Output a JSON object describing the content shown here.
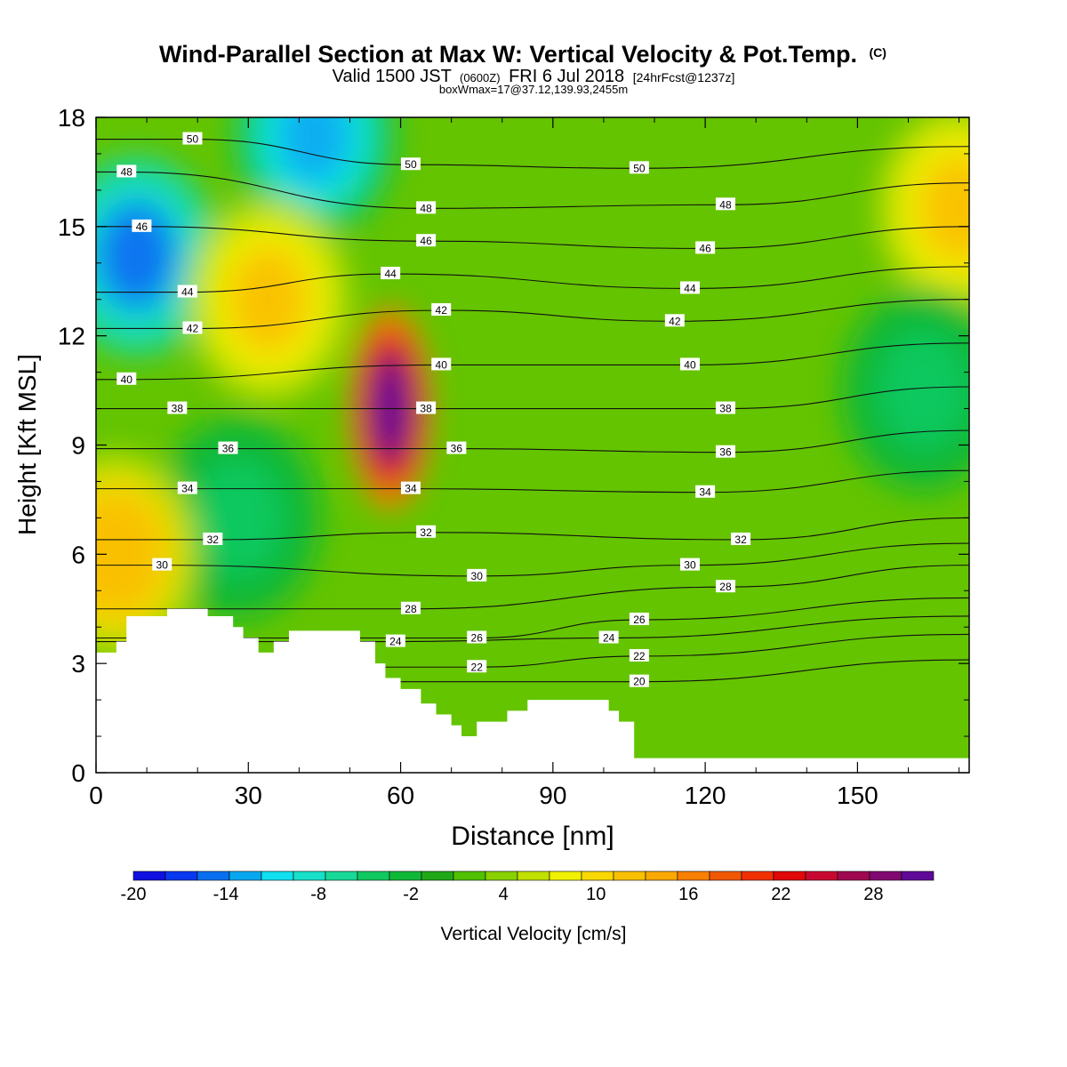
{
  "title": {
    "main": "Wind-Parallel Section at Max W: Vertical Velocity & Pot.Temp.",
    "copyright": "(C)",
    "valid_prefix": "Valid 1500 JST",
    "valid_utc": "(0600Z)",
    "valid_date": "FRI 6 Jul 2018",
    "forecast": "[24hrFcst@1237z]",
    "box_info": "boxWmax=17@37.12,139.93,2455m"
  },
  "chart_data": {
    "type": "heatmap",
    "xlabel": "Distance [nm]",
    "ylabel": "Height [Kft MSL]",
    "xlim": [
      0,
      172
    ],
    "ylim": [
      0,
      18
    ],
    "x_ticks": [
      0,
      30,
      60,
      90,
      120,
      150
    ],
    "y_ticks": [
      0,
      3,
      6,
      9,
      12,
      15,
      18
    ],
    "colorbar": {
      "label": "Vertical Velocity [cm/s]",
      "tick_labels": [
        "-20",
        "-14",
        "-8",
        "-2",
        "4",
        "10",
        "16",
        "22",
        "28"
      ],
      "colors": [
        "#1010e0",
        "#0838f0",
        "#0870f0",
        "#08a8f0",
        "#10e0f0",
        "#18e0c8",
        "#18d898",
        "#10c860",
        "#10b838",
        "#20a818",
        "#50c000",
        "#88d000",
        "#c0e000",
        "#f0f000",
        "#f8d800",
        "#f8c000",
        "#f8a800",
        "#f88000",
        "#f05800",
        "#f03000",
        "#e00808",
        "#c80830",
        "#a00850",
        "#800870",
        "#600898"
      ]
    },
    "terrain_profile": {
      "x": [
        0,
        4,
        4,
        6,
        6,
        10,
        10,
        14,
        14,
        22,
        22,
        27,
        27,
        29,
        29,
        32,
        32,
        35,
        35,
        38,
        38,
        42,
        42,
        52,
        52,
        55,
        55,
        57,
        57,
        60,
        60,
        64,
        64,
        67,
        67,
        70,
        70,
        72,
        72,
        75,
        75,
        81,
        81,
        85,
        85,
        101,
        101,
        103,
        103,
        106,
        106,
        172
      ],
      "height_kft": [
        3.3,
        3.3,
        3.6,
        3.6,
        4.3,
        4.3,
        4.3,
        4.3,
        4.5,
        4.5,
        4.3,
        4.3,
        4.0,
        4.0,
        3.7,
        3.7,
        3.3,
        3.3,
        3.6,
        3.6,
        3.9,
        3.9,
        3.9,
        3.9,
        3.6,
        3.6,
        3.0,
        3.0,
        2.6,
        2.6,
        2.3,
        2.3,
        1.9,
        1.9,
        1.6,
        1.6,
        1.3,
        1.3,
        1.0,
        1.0,
        1.4,
        1.4,
        1.7,
        1.7,
        2.0,
        2.0,
        1.7,
        1.7,
        1.4,
        1.4,
        0.4,
        0.4
      ]
    },
    "vertical_velocity_features": [
      {
        "name": "downdraft-west-upper",
        "x": 8,
        "height_kft": 14.2,
        "value": -16
      },
      {
        "name": "downdraft-top-center",
        "x": 43,
        "height_kft": 17.5,
        "value": -14
      },
      {
        "name": "downdraft-west-mid",
        "x": 28,
        "height_kft": 7.0,
        "value": -7
      },
      {
        "name": "updraft-core",
        "x": 58,
        "height_kft": 10.0,
        "value": 30
      },
      {
        "name": "updraft-west-ridge",
        "x": 34,
        "height_kft": 13.0,
        "value": 10
      },
      {
        "name": "updraft-west-low",
        "x": 4,
        "height_kft": 6.0,
        "value": 11
      },
      {
        "name": "updraft-east-edge",
        "x": 170,
        "height_kft": 15.5,
        "value": 10
      },
      {
        "name": "downdraft-east-edge",
        "x": 163,
        "height_kft": 10.5,
        "value": -7
      }
    ],
    "potential_temperature_labels": [
      {
        "label": "50",
        "x": 19,
        "height_kft": 17.4
      },
      {
        "label": "50",
        "x": 62,
        "height_kft": 16.7
      },
      {
        "label": "50",
        "x": 107,
        "height_kft": 16.6
      },
      {
        "label": "48",
        "x": 6,
        "height_kft": 16.5
      },
      {
        "label": "48",
        "x": 65,
        "height_kft": 15.5
      },
      {
        "label": "48",
        "x": 124,
        "height_kft": 15.6
      },
      {
        "label": "46",
        "x": 9,
        "height_kft": 15.0
      },
      {
        "label": "46",
        "x": 65,
        "height_kft": 14.6
      },
      {
        "label": "46",
        "x": 120,
        "height_kft": 14.4
      },
      {
        "label": "44",
        "x": 18,
        "height_kft": 13.2
      },
      {
        "label": "44",
        "x": 58,
        "height_kft": 13.7
      },
      {
        "label": "44",
        "x": 117,
        "height_kft": 13.3
      },
      {
        "label": "42",
        "x": 19,
        "height_kft": 12.2
      },
      {
        "label": "42",
        "x": 68,
        "height_kft": 12.7
      },
      {
        "label": "42",
        "x": 114,
        "height_kft": 12.4
      },
      {
        "label": "40",
        "x": 6,
        "height_kft": 10.8
      },
      {
        "label": "40",
        "x": 68,
        "height_kft": 11.2
      },
      {
        "label": "40",
        "x": 117,
        "height_kft": 11.2
      },
      {
        "label": "38",
        "x": 16,
        "height_kft": 10.0
      },
      {
        "label": "38",
        "x": 65,
        "height_kft": 10.0
      },
      {
        "label": "38",
        "x": 124,
        "height_kft": 10.0
      },
      {
        "label": "36",
        "x": 26,
        "height_kft": 8.9
      },
      {
        "label": "36",
        "x": 71,
        "height_kft": 8.9
      },
      {
        "label": "36",
        "x": 124,
        "height_kft": 8.8
      },
      {
        "label": "34",
        "x": 18,
        "height_kft": 7.8
      },
      {
        "label": "34",
        "x": 62,
        "height_kft": 7.8
      },
      {
        "label": "34",
        "x": 120,
        "height_kft": 7.7
      },
      {
        "label": "32",
        "x": 23,
        "height_kft": 6.4
      },
      {
        "label": "32",
        "x": 65,
        "height_kft": 6.6
      },
      {
        "label": "32",
        "x": 127,
        "height_kft": 6.4
      },
      {
        "label": "30",
        "x": 13,
        "height_kft": 5.7
      },
      {
        "label": "30",
        "x": 75,
        "height_kft": 5.4
      },
      {
        "label": "30",
        "x": 117,
        "height_kft": 5.7
      },
      {
        "label": "28",
        "x": 62,
        "height_kft": 4.5
      },
      {
        "label": "28",
        "x": 124,
        "height_kft": 5.1
      },
      {
        "label": "26",
        "x": 75,
        "height_kft": 3.7
      },
      {
        "label": "26",
        "x": 107,
        "height_kft": 4.2
      },
      {
        "label": "24",
        "x": 59,
        "height_kft": 3.6
      },
      {
        "label": "24",
        "x": 101,
        "height_kft": 3.7
      },
      {
        "label": "22",
        "x": 75,
        "height_kft": 2.9
      },
      {
        "label": "22",
        "x": 107,
        "height_kft": 3.2
      },
      {
        "label": "20",
        "x": 107,
        "height_kft": 2.5
      }
    ]
  }
}
